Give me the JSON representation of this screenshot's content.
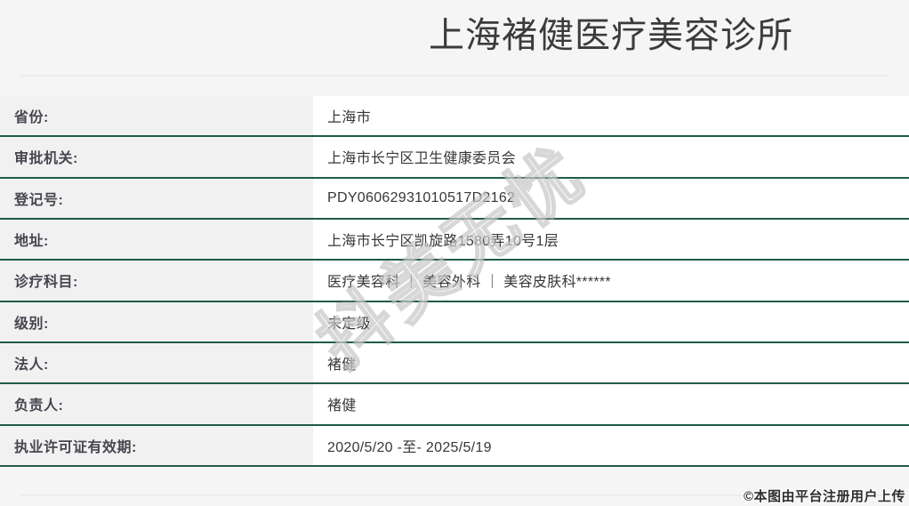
{
  "page": {
    "title": "上海褚健医疗美容诊所",
    "watermark_text": "抖美无忧",
    "footer_note": "©本图由平台注册用户上传"
  },
  "colors": {
    "accent_line": "#215a4b",
    "page_bg": "#f5f5f6",
    "label_bg": "#f1f1f2",
    "value_bg": "#ffffff",
    "label_text": "#46464e",
    "value_text": "#37373a",
    "title_text": "#3b3b3d"
  },
  "table": {
    "rows": [
      {
        "label": "省份:",
        "value": "上海市"
      },
      {
        "label": "审批机关:",
        "value": "上海市长宁区卫生健康委员会"
      },
      {
        "label": "登记号:",
        "value": "PDY06062931010517D2162"
      },
      {
        "label": "地址:",
        "value": "上海市长宁区凯旋路1580弄10号1层"
      },
      {
        "label": "诊疗科目:",
        "value": "医疗美容科 ｜ 美容外科 ｜ 美容皮肤科******"
      },
      {
        "label": "级别:",
        "value": "未定级"
      },
      {
        "label": "法人:",
        "value": "褚健"
      },
      {
        "label": "负责人:",
        "value": "褚健"
      },
      {
        "label": "执业许可证有效期:",
        "value": "2020/5/20 -至- 2025/5/19"
      }
    ]
  }
}
